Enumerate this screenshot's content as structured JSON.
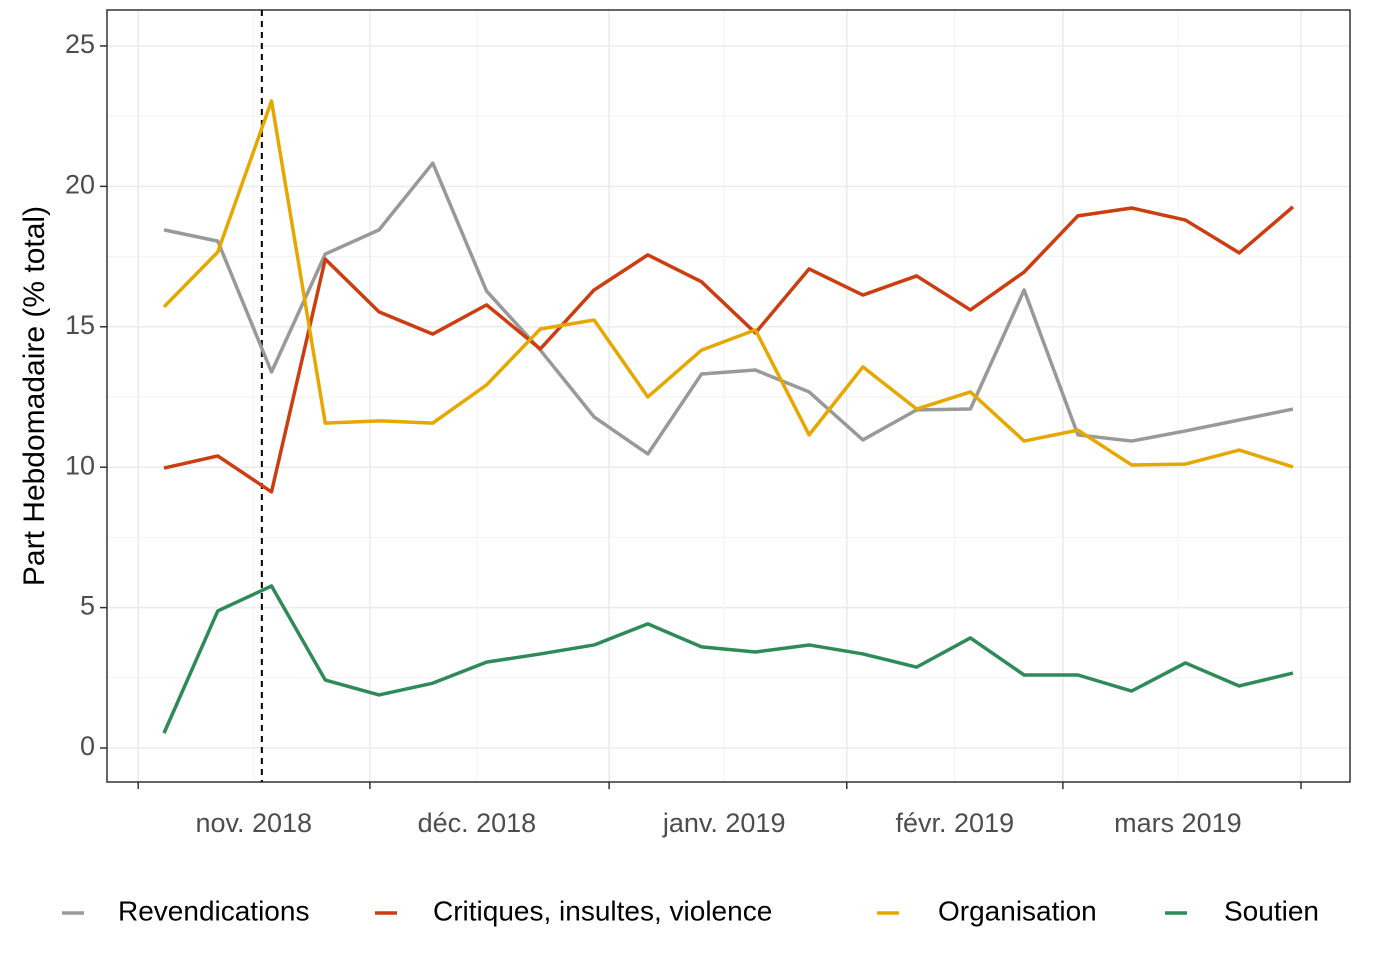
{
  "chart_data": {
    "type": "line",
    "y_label": "Part Hebdomadaire (% total)",
    "categories": [
      null,
      null,
      null,
      null,
      null,
      null,
      null,
      null,
      null,
      null,
      null,
      null,
      null,
      null,
      null,
      null,
      null,
      null,
      null,
      null,
      null,
      null
    ],
    "xtick_labels": [
      "nov. 2018",
      "déc. 2018",
      "janv. 2019",
      "févr. 2019",
      "mars 2019"
    ],
    "series": [
      {
        "name": "Revendications",
        "color": "#999999",
        "values": [
          18.45,
          18.05,
          13.39,
          17.59,
          18.45,
          20.83,
          16.27,
          14.17,
          11.79,
          10.47,
          13.32,
          13.46,
          12.68,
          10.97,
          12.04,
          12.07,
          16.31,
          11.15,
          10.93,
          11.29,
          11.68,
          12.07
        ]
      },
      {
        "name": "Critiques, insultes, violence",
        "color": "#CC3D10",
        "values": [
          9.97,
          10.4,
          9.12,
          17.41,
          15.53,
          14.74,
          15.78,
          14.21,
          16.31,
          17.56,
          16.6,
          14.78,
          17.06,
          16.13,
          16.81,
          15.6,
          16.95,
          18.95,
          19.23,
          18.8,
          17.63,
          19.27
        ]
      },
      {
        "name": "Organisation",
        "color": "#E6A800",
        "values": [
          15.71,
          17.66,
          23.04,
          11.57,
          11.65,
          11.57,
          12.93,
          14.92,
          15.24,
          12.5,
          14.17,
          14.89,
          11.15,
          13.57,
          12.07,
          12.68,
          10.93,
          11.32,
          10.08,
          10.11,
          10.61,
          10.01
        ]
      },
      {
        "name": "Soutien",
        "color": "#2E8B57",
        "values": [
          0.53,
          4.88,
          5.77,
          2.42,
          1.89,
          2.31,
          3.06,
          3.35,
          3.67,
          4.42,
          3.6,
          3.42,
          3.67,
          3.35,
          2.88,
          3.92,
          2.6,
          2.6,
          2.03,
          3.03,
          2.21,
          2.67
        ]
      }
    ],
    "ylim": [
      -1.21,
      26.28
    ],
    "yticks": [
      0,
      5,
      10,
      15,
      20,
      25
    ],
    "grid": true,
    "legend": "bottom"
  }
}
